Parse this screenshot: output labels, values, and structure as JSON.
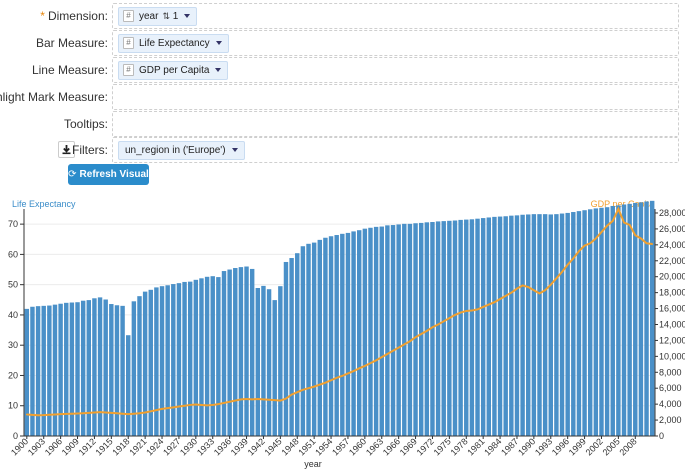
{
  "form": {
    "dimension": {
      "label": "Dimension:",
      "required_mark": "*",
      "field": "year",
      "sort_value": "1"
    },
    "bar_measure": {
      "label": "Bar Measure:",
      "field": "Life Expectancy"
    },
    "line_measure": {
      "label": "Line Measure:",
      "field": "GDP per Capita"
    },
    "highlight": {
      "label": "Highlight Mark Measure:"
    },
    "tooltips": {
      "label": "Tooltips:"
    },
    "filters": {
      "label": "Filters:",
      "field": "un_region in ('Europe')"
    },
    "hash_glyph": "#",
    "refresh_button": "Refresh Visual",
    "accent_color": "#2b8ccb"
  },
  "chart_data": {
    "type": "bar",
    "xlabel": "year",
    "left_axis_label": "Life Expectancy",
    "right_axis_label": "GDP per Capita",
    "x": [
      1900,
      1901,
      1902,
      1903,
      1904,
      1905,
      1906,
      1907,
      1908,
      1909,
      1910,
      1911,
      1912,
      1913,
      1914,
      1915,
      1916,
      1917,
      1918,
      1919,
      1920,
      1921,
      1922,
      1923,
      1924,
      1925,
      1926,
      1927,
      1928,
      1929,
      1930,
      1931,
      1932,
      1933,
      1934,
      1935,
      1936,
      1937,
      1938,
      1939,
      1940,
      1941,
      1942,
      1943,
      1944,
      1945,
      1946,
      1947,
      1948,
      1949,
      1950,
      1951,
      1952,
      1953,
      1954,
      1955,
      1956,
      1957,
      1958,
      1959,
      1960,
      1961,
      1962,
      1963,
      1964,
      1965,
      1966,
      1967,
      1968,
      1969,
      1970,
      1971,
      1972,
      1973,
      1974,
      1975,
      1976,
      1977,
      1978,
      1979,
      1980,
      1981,
      1982,
      1983,
      1984,
      1985,
      1986,
      1987,
      1988,
      1989,
      1990,
      1991,
      1992,
      1993,
      1994,
      1995,
      1996,
      1997,
      1998,
      1999,
      2000,
      2001,
      2002,
      2003,
      2004,
      2005,
      2006,
      2007,
      2008,
      2009,
      2010,
      2011
    ],
    "x_tick_labels": [
      "1900",
      "1903",
      "1906",
      "1909",
      "1912",
      "1915",
      "1918",
      "1921",
      "1924",
      "1927",
      "1930",
      "1933",
      "1936",
      "1939",
      "1942",
      "1945",
      "1948",
      "1951",
      "1954",
      "1957",
      "1960",
      "1963",
      "1966",
      "1969",
      "1972",
      "1975",
      "1978",
      "1981",
      "1984",
      "1987",
      "1990",
      "1993",
      "1996",
      "1999",
      "2002",
      "2005",
      "2008"
    ],
    "series": [
      {
        "name": "Life Expectancy",
        "axis": "left",
        "color": "#4a90c8",
        "values": [
          42.0,
          42.7,
          42.9,
          43.0,
          43.1,
          43.4,
          43.7,
          44.0,
          44.1,
          44.2,
          44.7,
          44.9,
          45.5,
          45.8,
          45.1,
          43.6,
          43.2,
          43.0,
          33.3,
          44.5,
          46.2,
          47.7,
          48.3,
          49.1,
          49.5,
          49.8,
          50.2,
          50.5,
          50.9,
          51.0,
          51.6,
          52.1,
          52.6,
          52.8,
          52.5,
          54.5,
          55.0,
          55.5,
          55.8,
          56.0,
          55.2,
          48.9,
          49.6,
          48.5,
          44.9,
          49.5,
          57.5,
          58.8,
          60.4,
          62.7,
          63.5,
          63.9,
          64.8,
          65.5,
          66.0,
          66.4,
          66.8,
          67.1,
          67.6,
          68.0,
          68.5,
          68.8,
          69.1,
          69.2,
          69.6,
          69.7,
          69.9,
          70.1,
          70.1,
          70.3,
          70.4,
          70.6,
          70.7,
          70.9,
          71.0,
          71.1,
          71.2,
          71.4,
          71.5,
          71.6,
          71.8,
          72.0,
          72.2,
          72.4,
          72.5,
          72.6,
          72.8,
          72.9,
          73.1,
          73.2,
          73.3,
          73.3,
          73.3,
          73.2,
          73.3,
          73.5,
          73.7,
          74.0,
          74.3,
          74.6,
          74.9,
          75.2,
          75.4,
          75.6,
          76.0,
          76.2,
          76.5,
          76.7,
          77.0,
          77.2,
          77.5,
          77.7
        ]
      },
      {
        "name": "GDP per Capita",
        "axis": "right",
        "color": "#f0a030",
        "values": [
          2700,
          2650,
          2600,
          2620,
          2660,
          2700,
          2750,
          2780,
          2800,
          2830,
          2860,
          2900,
          2950,
          3000,
          2950,
          2900,
          2850,
          2800,
          2750,
          2800,
          2850,
          2950,
          3100,
          3250,
          3400,
          3500,
          3600,
          3700,
          3800,
          3900,
          3950,
          3900,
          3850,
          3900,
          4000,
          4150,
          4300,
          4450,
          4600,
          4650,
          4600,
          4650,
          4600,
          4550,
          4500,
          4450,
          4700,
          5200,
          5500,
          5800,
          6000,
          6200,
          6450,
          6700,
          7000,
          7300,
          7550,
          7850,
          8150,
          8500,
          8800,
          9150,
          9500,
          9900,
          10300,
          10700,
          11100,
          11500,
          11900,
          12400,
          12800,
          13200,
          13650,
          14000,
          14400,
          14800,
          15200,
          15500,
          15700,
          15750,
          15900,
          16200,
          16500,
          16800,
          17200,
          17600,
          18000,
          18500,
          18900,
          18700,
          18300,
          17900,
          18300,
          19000,
          19800,
          20600,
          21500,
          22300,
          23200,
          23900,
          24200,
          24800,
          25600,
          26400,
          27000,
          28500,
          26800,
          26500,
          25200,
          24800,
          24200,
          24100
        ]
      }
    ],
    "left_axis": {
      "ylim": [
        0,
        75
      ],
      "ticks": [
        0,
        10,
        20,
        30,
        40,
        50,
        60,
        70
      ]
    },
    "right_axis": {
      "ylim": [
        0,
        28500
      ],
      "ticks": [
        0,
        2000,
        4000,
        6000,
        8000,
        10000,
        12000,
        14000,
        16000,
        18000,
        20000,
        22000,
        24000,
        26000,
        28000
      ],
      "tick_labels": [
        "0",
        "2,000",
        "4,000",
        "6,000",
        "8,000",
        "10,000",
        "12,000",
        "14,000",
        "16,000",
        "18,000",
        "20,000",
        "22,000",
        "24,000",
        "26,000",
        "28,000"
      ]
    },
    "grid": "horizontal"
  }
}
